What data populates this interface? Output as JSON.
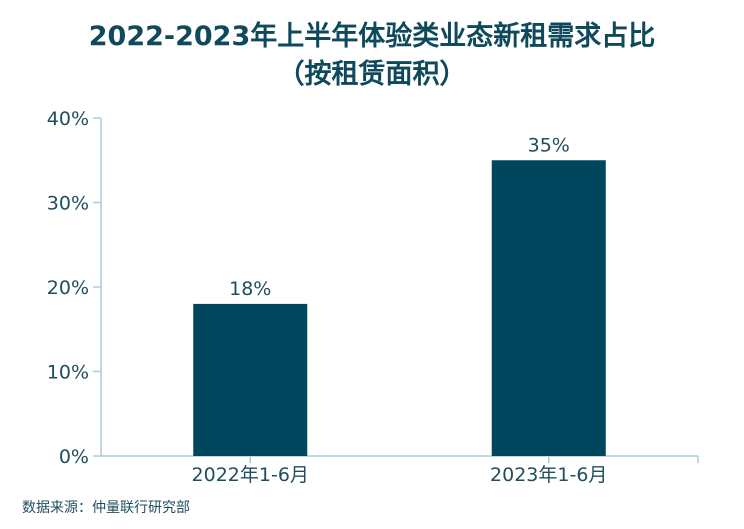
{
  "chart_data": {
    "type": "bar",
    "title_line1": "2022-2023年上半年体验类业态新租需求占比",
    "title_line2": "（按租赁面积）",
    "categories": [
      "2022年1-6月",
      "2023年1-6月"
    ],
    "values": [
      18,
      35
    ],
    "value_labels": [
      "18%",
      "35%"
    ],
    "yticks": [
      0,
      10,
      20,
      30,
      40
    ],
    "ytick_labels": [
      "0%",
      "10%",
      "20%",
      "30%",
      "40%"
    ],
    "ylim": [
      0,
      40
    ],
    "bar_color": "#00465c",
    "axis_color": "#a9cdd8",
    "grid": false
  },
  "source": "数据来源：仲量联行研究部"
}
